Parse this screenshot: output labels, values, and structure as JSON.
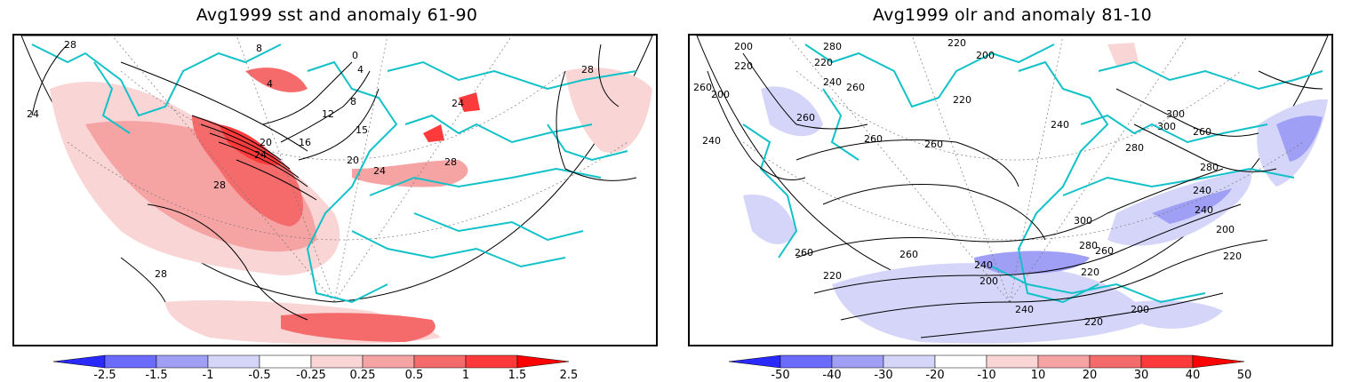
{
  "panels": [
    {
      "title": "Avg1999 sst and anomaly 61-90",
      "contour_labels": [
        "28",
        "24",
        "8",
        "0",
        "4",
        "4",
        "8",
        "12",
        "16",
        "15",
        "20",
        "24",
        "20",
        "24",
        "28",
        "24",
        "28",
        "28",
        "28"
      ],
      "colorbar": {
        "ticks": [
          "-2.5",
          "-1.5",
          "-1",
          "-0.5",
          "-0.25",
          "0.25",
          "0.5",
          "1",
          "1.5",
          "2.5"
        ],
        "colors": [
          "#2a2aff",
          "#6b6bff",
          "#9f9ff5",
          "#d5d5fa",
          "#ffffff",
          "#fad5d5",
          "#f5a3a3",
          "#f56b6b",
          "#ff3a3a",
          "#ff0000"
        ]
      }
    },
    {
      "title": "Avg1999 olr and anomaly 81-10",
      "contour_labels": [
        "200",
        "220",
        "280",
        "220",
        "220",
        "200",
        "260",
        "200",
        "240",
        "260",
        "260",
        "220",
        "240",
        "260",
        "260",
        "240",
        "300",
        "300",
        "280",
        "260",
        "280",
        "240",
        "300",
        "280",
        "260",
        "200",
        "220",
        "240",
        "260",
        "220",
        "200",
        "240",
        "260",
        "220",
        "200",
        "240",
        "220"
      ],
      "colorbar": {
        "ticks": [
          "-50",
          "-40",
          "-30",
          "-20",
          "-10",
          "10",
          "20",
          "30",
          "40",
          "50"
        ],
        "colors": [
          "#2a2aff",
          "#6b6bff",
          "#9f9ff5",
          "#d5d5fa",
          "#ffffff",
          "#fad5d5",
          "#f5a3a3",
          "#f56b6b",
          "#ff3a3a",
          "#ff0000"
        ]
      }
    }
  ]
}
